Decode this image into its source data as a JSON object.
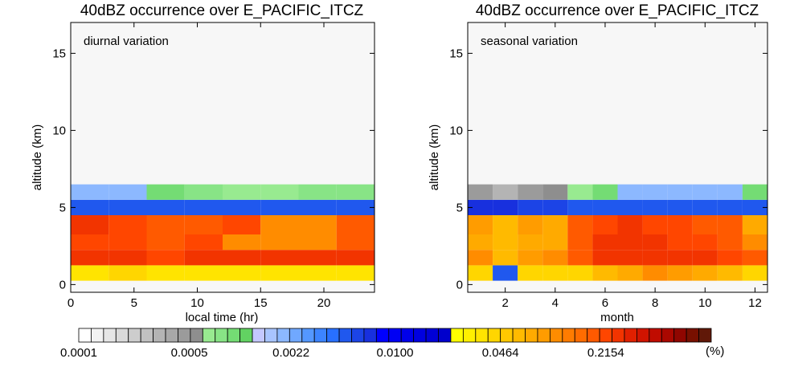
{
  "chart_data": [
    {
      "type": "heatmap",
      "title": "40dBZ occurrence over E_PACIFIC_ITCZ",
      "annotation": "diurnal variation",
      "xlabel": "local time (hr)",
      "ylabel": "altitude (km)",
      "xlim": [
        0,
        24
      ],
      "ylim": [
        -0.5,
        17
      ],
      "xticks": [
        0,
        5,
        10,
        15,
        20
      ],
      "yticks": [
        0,
        5,
        10,
        15
      ],
      "x_edges": [
        0,
        3,
        6,
        9,
        12,
        15,
        18,
        21,
        24
      ],
      "y_edges": [
        0.25,
        1.25,
        2.25,
        3.25,
        4.5,
        5.5,
        6.5
      ],
      "values": [
        [
          0.035,
          0.04,
          0.035,
          0.035,
          0.035,
          0.035,
          0.035,
          0.035
        ],
        [
          0.24,
          0.24,
          0.22,
          0.24,
          0.24,
          0.24,
          0.24,
          0.24
        ],
        [
          0.21,
          0.21,
          0.19,
          0.21,
          0.11,
          0.11,
          0.11,
          0.19
        ],
        [
          0.24,
          0.22,
          0.19,
          0.19,
          0.21,
          0.11,
          0.11,
          0.19
        ],
        [
          0.0045,
          0.0045,
          0.0045,
          0.0045,
          0.0045,
          0.0045,
          0.0045,
          0.0045
        ],
        [
          0.0018,
          0.0018,
          0.00095,
          0.00085,
          0.0007,
          0.0007,
          0.00085,
          0.00085
        ]
      ]
    },
    {
      "type": "heatmap",
      "title": "40dBZ occurrence over E_PACIFIC_ITCZ",
      "annotation": "seasonal variation",
      "xlabel": "month",
      "ylabel": "altitude (km)",
      "xlim": [
        0.5,
        12.5
      ],
      "ylim": [
        -0.5,
        17
      ],
      "xticks": [
        2,
        4,
        6,
        8,
        10,
        12
      ],
      "yticks": [
        0,
        5,
        10,
        15
      ],
      "x_edges": [
        0.5,
        1.5,
        2.5,
        3.5,
        4.5,
        5.5,
        6.5,
        7.5,
        8.5,
        9.5,
        10.5,
        11.5,
        12.5
      ],
      "y_edges": [
        0.25,
        1.25,
        2.25,
        3.25,
        4.5,
        5.5,
        6.5
      ],
      "values": [
        [
          0.04,
          0.0048,
          0.04,
          0.04,
          0.045,
          0.06,
          0.075,
          0.1,
          0.08,
          0.075,
          0.06,
          0.04
        ],
        [
          0.1,
          0.06,
          0.08,
          0.1,
          0.19,
          0.24,
          0.28,
          0.28,
          0.24,
          0.28,
          0.21,
          0.19
        ],
        [
          0.075,
          0.06,
          0.075,
          0.075,
          0.19,
          0.24,
          0.24,
          0.24,
          0.21,
          0.21,
          0.19,
          0.11
        ],
        [
          0.085,
          0.06,
          0.09,
          0.075,
          0.19,
          0.21,
          0.24,
          0.21,
          0.21,
          0.19,
          0.19,
          0.075
        ],
        [
          0.0065,
          0.0065,
          0.0055,
          0.0055,
          0.0048,
          0.0045,
          0.0045,
          0.0045,
          0.0045,
          0.0045,
          0.0045,
          0.0045
        ],
        [
          0.00045,
          0.00035,
          0.00045,
          0.00055,
          0.00065,
          0.0009,
          0.0018,
          0.0018,
          0.0018,
          0.0018,
          0.0018,
          0.0009
        ]
      ]
    }
  ],
  "colorbar": {
    "unit": "(%)",
    "min": 0.0001,
    "max": 1,
    "labels": [
      "0.0001",
      "0.0005",
      "0.0022",
      "0.0100",
      "0.0464",
      "0.2154"
    ],
    "label_values": [
      0.0001,
      0.0005,
      0.0022,
      0.01,
      0.0464,
      0.2154
    ],
    "colors": [
      "#ffffff",
      "#f2f2f2",
      "#e6e6e6",
      "#dadada",
      "#cdcdcd",
      "#c1c1c1",
      "#b4b4b4",
      "#a8a8a8",
      "#9b9b9b",
      "#8e8e8e",
      "#98ea90",
      "#88e486",
      "#74dc74",
      "#62d262",
      "#c4c8ff",
      "#a8c4ff",
      "#8cb8ff",
      "#70a8ff",
      "#5498ff",
      "#3c84ff",
      "#2870ff",
      "#2058ee",
      "#1c44e6",
      "#1830de",
      "#0000ff",
      "#0000f4",
      "#0000ea",
      "#0000e0",
      "#0000d6",
      "#0000cc",
      "#ffff00",
      "#fff000",
      "#ffe400",
      "#ffd600",
      "#ffc800",
      "#ffba00",
      "#ffaa00",
      "#ff9c00",
      "#ff8c00",
      "#ff7c00",
      "#ff6c00",
      "#ff5a00",
      "#ff4600",
      "#f23400",
      "#e02000",
      "#d01400",
      "#c00c00",
      "#aa0800",
      "#900600",
      "#781000",
      "#601808"
    ]
  }
}
